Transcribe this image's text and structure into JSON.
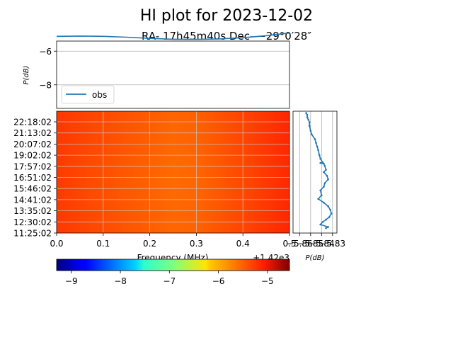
{
  "chart_data": [
    {
      "panel": "spectrum",
      "type": "line",
      "title": "HI plot for 2023-12-02",
      "subtitle": "RA- 17h45m40s Dec- −29°0′28″",
      "ylabel": "P(dB)",
      "ylim": [
        -9.4,
        -5.4
      ],
      "yticks": [
        -6,
        -8
      ],
      "ytick_labels": [
        "−6",
        "−8"
      ],
      "xlim": [
        0,
        0.5
      ],
      "grid": "horizontal",
      "legend": "lower-left",
      "series": [
        {
          "name": "obs",
          "color": "#1f77b4",
          "x": [
            0,
            0.05,
            0.1,
            0.15,
            0.2,
            0.25,
            0.3,
            0.35,
            0.4,
            0.45,
            0.5
          ],
          "y": [
            -5.12,
            -5.1,
            -5.12,
            -5.17,
            -5.24,
            -5.29,
            -5.3,
            -5.27,
            -5.2,
            -5.08,
            -4.92
          ]
        }
      ]
    },
    {
      "panel": "waterfall",
      "type": "heatmap",
      "xlabel": "Frequency (MHz)",
      "x_offset_label": "+1.42e3",
      "xlim": [
        0,
        0.5
      ],
      "xticks": [
        0,
        0.1,
        0.2,
        0.3,
        0.4,
        0.5
      ],
      "xtick_labels": [
        "0.0",
        "0.1",
        "0.2",
        "0.3",
        "0.4",
        "0.5"
      ],
      "yticks": [
        "11:25:02",
        "12:30:02",
        "13:35:02",
        "14:41:02",
        "15:46:02",
        "16:51:02",
        "17:57:02",
        "19:02:02",
        "20:07:02",
        "21:13:02",
        "22:18:02"
      ],
      "colormap": "jet",
      "grid": true
    },
    {
      "panel": "colorbar",
      "type": "colorbar",
      "range": [
        -9.3,
        -4.55
      ],
      "ticks": [
        -9,
        -8,
        -7,
        -6,
        -5
      ],
      "tick_labels": [
        "−9",
        "−8",
        "−7",
        "−6",
        "−5"
      ],
      "colormap": "jet"
    },
    {
      "panel": "time-profile",
      "type": "line",
      "xlabel": "P(dB)",
      "xlim": [
        -5.866,
        -5.826
      ],
      "xticks": [
        -5.86,
        -5.85,
        -5.84,
        -5.83
      ],
      "xtick_labels": [
        "−5.86",
        "−5.85",
        "−5.84",
        "−5.83"
      ],
      "grid": "vertical",
      "series": [
        {
          "color": "#1f77b4",
          "x": [
            -5.854,
            -5.853,
            -5.853,
            -5.852,
            -5.851,
            -5.851,
            -5.85,
            -5.849,
            -5.846,
            -5.845,
            -5.844,
            -5.843,
            -5.842,
            -5.841,
            -5.839,
            -5.841,
            -5.838,
            -5.837,
            -5.836,
            -5.838,
            -5.835,
            -5.834,
            -5.837,
            -5.838,
            -5.841,
            -5.84,
            -5.843,
            -5.838,
            -5.834,
            -5.832,
            -5.831,
            -5.833,
            -5.836,
            -5.839,
            -5.841,
            -5.834,
            -5.836
          ],
          "y": [
            0.985,
            0.97,
            0.95,
            0.93,
            0.91,
            0.88,
            0.84,
            0.81,
            0.77,
            0.74,
            0.71,
            0.68,
            0.64,
            0.61,
            0.58,
            0.575,
            0.57,
            0.55,
            0.52,
            0.5,
            0.47,
            0.44,
            0.41,
            0.38,
            0.35,
            0.31,
            0.28,
            0.25,
            0.22,
            0.19,
            0.16,
            0.13,
            0.11,
            0.09,
            0.07,
            0.05,
            0.04
          ]
        }
      ]
    }
  ]
}
